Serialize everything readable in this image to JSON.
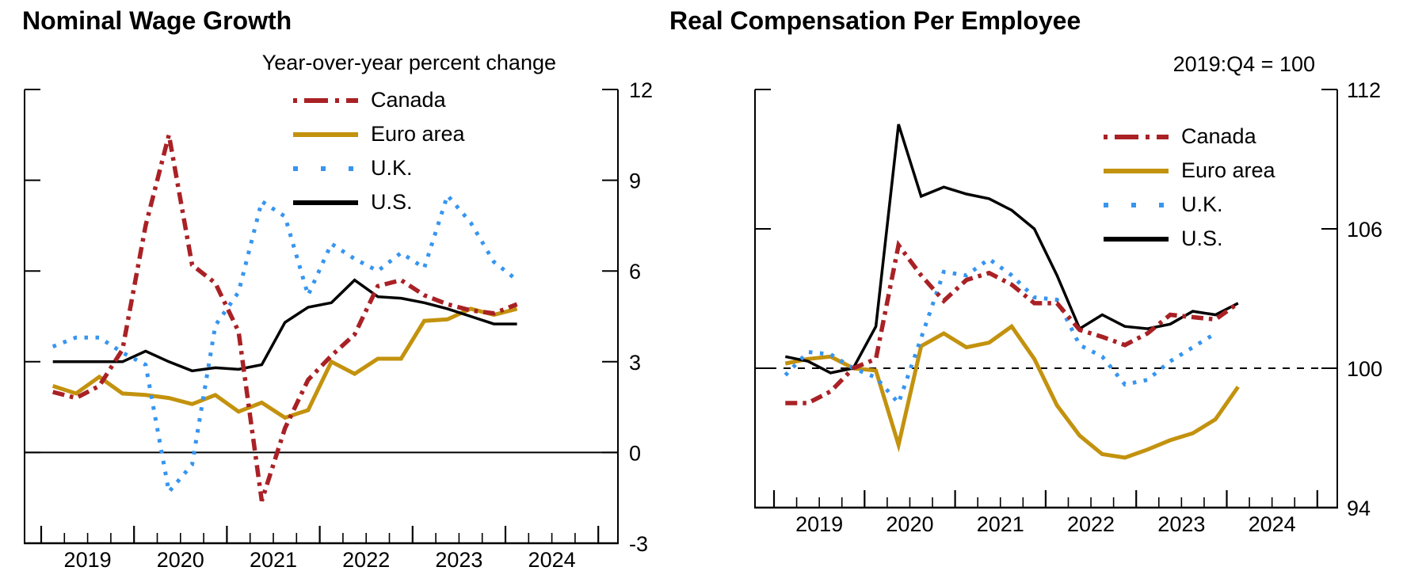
{
  "chart_data": [
    {
      "type": "line",
      "title": "Nominal Wage Growth",
      "units_label": "Year-over-year percent change",
      "x_frequency": "quarterly",
      "categories": [
        "2019:Q1",
        "2019:Q2",
        "2019:Q3",
        "2019:Q4",
        "2020:Q1",
        "2020:Q2",
        "2020:Q3",
        "2020:Q4",
        "2021:Q1",
        "2021:Q2",
        "2021:Q3",
        "2021:Q4",
        "2022:Q1",
        "2022:Q2",
        "2022:Q3",
        "2022:Q4",
        "2023:Q1",
        "2023:Q2",
        "2023:Q3",
        "2023:Q4",
        "2024:Q1"
      ],
      "xtick_labels": [
        "2019",
        "2020",
        "2021",
        "2022",
        "2023",
        "2024"
      ],
      "ylim": [
        -3,
        12
      ],
      "yticks": [
        -3,
        0,
        3,
        6,
        9,
        12
      ],
      "grid": false,
      "legend_position": "inside-top-center",
      "ref_line": {
        "value": 0,
        "dashed": false
      },
      "series": [
        {
          "name": "Canada",
          "color": "#a92125",
          "line_style": "dashdot",
          "values": [
            2.0,
            1.8,
            2.2,
            3.4,
            7.5,
            10.5,
            6.2,
            5.6,
            4.0,
            -1.6,
            0.8,
            2.4,
            3.2,
            3.9,
            5.5,
            5.7,
            5.2,
            4.9,
            4.7,
            4.6,
            4.9
          ]
        },
        {
          "name": "Euro area",
          "color": "#c3920e",
          "line_style": "solid",
          "values": [
            2.2,
            1.95,
            2.5,
            1.95,
            1.9,
            1.8,
            1.6,
            1.9,
            1.35,
            1.65,
            1.15,
            1.4,
            3.0,
            2.6,
            3.1,
            3.1,
            4.35,
            4.4,
            4.75,
            4.55,
            4.75
          ]
        },
        {
          "name": "U.K.",
          "color": "#3795f0",
          "line_style": "dotted",
          "values": [
            3.5,
            3.8,
            3.8,
            3.3,
            2.9,
            -1.3,
            -0.4,
            4.2,
            5.3,
            8.3,
            7.8,
            5.2,
            6.9,
            6.4,
            6.0,
            6.6,
            6.1,
            8.5,
            7.6,
            6.3,
            5.7
          ]
        },
        {
          "name": "U.S.",
          "color": "#000000",
          "line_style": "solid",
          "values": [
            3.0,
            3.0,
            3.0,
            3.0,
            3.35,
            3.0,
            2.7,
            2.8,
            2.75,
            2.9,
            4.3,
            4.8,
            4.95,
            5.7,
            5.15,
            5.1,
            4.95,
            4.75,
            4.5,
            4.25,
            4.25
          ]
        }
      ]
    },
    {
      "type": "line",
      "title": "Real Compensation Per Employee",
      "units_label": "2019:Q4 = 100",
      "x_frequency": "quarterly",
      "categories": [
        "2019:Q1",
        "2019:Q2",
        "2019:Q3",
        "2019:Q4",
        "2020:Q1",
        "2020:Q2",
        "2020:Q3",
        "2020:Q4",
        "2021:Q1",
        "2021:Q2",
        "2021:Q3",
        "2021:Q4",
        "2022:Q1",
        "2022:Q2",
        "2022:Q3",
        "2022:Q4",
        "2023:Q1",
        "2023:Q2",
        "2023:Q3",
        "2023:Q4",
        "2024:Q1"
      ],
      "xtick_labels": [
        "2019",
        "2020",
        "2021",
        "2022",
        "2023",
        "2024"
      ],
      "ylim": [
        94,
        112
      ],
      "yticks": [
        94,
        100,
        106,
        112
      ],
      "grid": false,
      "legend_position": "inside-right",
      "ref_line": {
        "value": 100,
        "dashed": true
      },
      "series": [
        {
          "name": "Canada",
          "color": "#a92125",
          "line_style": "dashdot",
          "values": [
            98.5,
            98.5,
            99.0,
            100.0,
            100.4,
            105.3,
            104.0,
            102.9,
            103.8,
            104.1,
            103.6,
            102.8,
            102.8,
            101.65,
            101.35,
            101.0,
            101.5,
            102.3,
            102.2,
            102.1,
            102.8
          ]
        },
        {
          "name": "Euro area",
          "color": "#c3920e",
          "line_style": "solid",
          "values": [
            100.2,
            100.4,
            100.5,
            100.0,
            99.9,
            96.7,
            100.95,
            101.5,
            100.9,
            101.1,
            101.8,
            100.4,
            98.4,
            97.1,
            96.3,
            96.15,
            96.5,
            96.9,
            97.2,
            97.8,
            99.2
          ]
        },
        {
          "name": "U.K.",
          "color": "#3795f0",
          "line_style": "dotted",
          "values": [
            99.7,
            100.7,
            100.6,
            100.0,
            99.6,
            98.5,
            101.3,
            104.15,
            104.0,
            104.7,
            104.0,
            103.05,
            102.95,
            101.0,
            100.5,
            99.3,
            99.5,
            100.3,
            100.9,
            101.5,
            null
          ]
        },
        {
          "name": "U.S.",
          "color": "#000000",
          "line_style": "solid",
          "values": [
            100.5,
            100.3,
            99.8,
            100.0,
            101.8,
            110.5,
            107.4,
            107.8,
            107.5,
            107.3,
            106.8,
            106.0,
            104.0,
            101.7,
            102.3,
            101.8,
            101.7,
            101.9,
            102.45,
            102.3,
            102.8
          ]
        }
      ]
    }
  ]
}
